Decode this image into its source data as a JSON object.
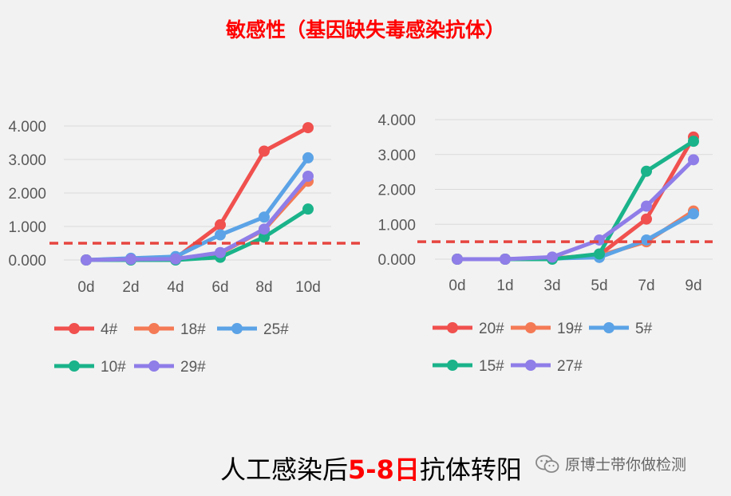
{
  "title": "敏感性（基因缺失毒感染抗体）",
  "caption": {
    "prefix": "人工感染后",
    "highlight": "5-8日",
    "suffix": "抗体转阳"
  },
  "watermark": {
    "text": "原博士带你做检测",
    "icon": "wechat-icon"
  },
  "colors": {
    "red": "#f0504e",
    "orange": "#f47a55",
    "blue": "#5ba3e6",
    "green": "#1ab38a",
    "purple": "#8f7de8",
    "threshold": "#e6453f"
  },
  "chart_data": [
    {
      "type": "line",
      "categories": [
        "0d",
        "2d",
        "4d",
        "6d",
        "8d",
        "10d"
      ],
      "ylim": [
        0,
        4
      ],
      "yticks": [
        "0.000",
        "1.000",
        "2.000",
        "3.000",
        "4.000"
      ],
      "threshold": 0.5,
      "grid": true,
      "legend_position": "bottom",
      "series": [
        {
          "name": "4#",
          "color": "red",
          "values": [
            0,
            0.02,
            0.05,
            1.05,
            3.25,
            3.95
          ]
        },
        {
          "name": "18#",
          "color": "orange",
          "values": [
            0,
            0.02,
            0.03,
            0.2,
            0.9,
            2.35
          ]
        },
        {
          "name": "25#",
          "color": "blue",
          "values": [
            0,
            0.05,
            0.1,
            0.75,
            1.28,
            3.05
          ]
        },
        {
          "name": "10#",
          "color": "green",
          "values": [
            0,
            0.0,
            0.0,
            0.08,
            0.68,
            1.52
          ]
        },
        {
          "name": "29#",
          "color": "purple",
          "values": [
            0,
            0.02,
            0.03,
            0.22,
            0.92,
            2.5
          ]
        }
      ]
    },
    {
      "type": "line",
      "categories": [
        "0d",
        "1d",
        "3d",
        "5d",
        "7d",
        "9d"
      ],
      "ylim": [
        0,
        4
      ],
      "yticks": [
        "0.000",
        "1.000",
        "2.000",
        "3.000",
        "4.000"
      ],
      "threshold": 0.5,
      "grid": true,
      "legend_position": "bottom",
      "series": [
        {
          "name": "20#",
          "color": "red",
          "values": [
            0,
            0.0,
            0.02,
            0.12,
            1.15,
            3.5
          ]
        },
        {
          "name": "19#",
          "color": "orange",
          "values": [
            0,
            0.0,
            0.02,
            0.1,
            0.5,
            1.38
          ]
        },
        {
          "name": "5#",
          "color": "blue",
          "values": [
            0,
            0.0,
            0.02,
            0.05,
            0.55,
            1.3
          ]
        },
        {
          "name": "15#",
          "color": "green",
          "values": [
            0,
            0.0,
            0.0,
            0.15,
            2.52,
            3.38
          ]
        },
        {
          "name": "27#",
          "color": "purple",
          "values": [
            0,
            0.0,
            0.06,
            0.55,
            1.52,
            2.85
          ]
        }
      ]
    }
  ]
}
